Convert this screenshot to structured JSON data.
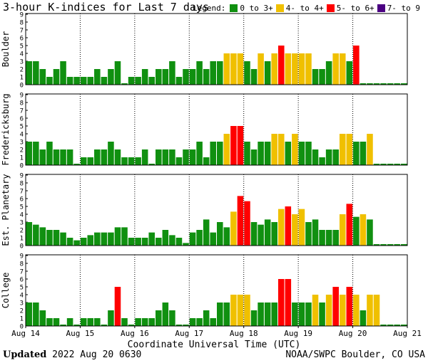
{
  "title": "3-hour K-indices for Last 7 days",
  "legend": {
    "label": "Legend:",
    "items": [
      {
        "label": "0 to 3+",
        "color": "#109010"
      },
      {
        "label": "4- to 4+",
        "color": "#f0c000"
      },
      {
        "label": "5- to 6+",
        "color": "#ff0000"
      },
      {
        "label": "7- to 9",
        "color": "#4b0082"
      }
    ]
  },
  "footer": {
    "updated_label": "Updated",
    "updated_value": "2022 Aug 20 0630",
    "source": "NOAA/SWPC Boulder, CO USA"
  },
  "chart_data": {
    "type": "bar",
    "xlabel": "Coordinate Universal Time (UTC)",
    "x_tick_labels": [
      "Aug 14",
      "Aug 15",
      "Aug 16",
      "Aug 17",
      "Aug 18",
      "Aug 19",
      "Aug 20",
      "Aug 21"
    ],
    "bins_per_day": 8,
    "ylim": [
      0,
      9
    ],
    "y_ticks": [
      "0",
      "1",
      "2",
      "3",
      "4",
      "5",
      "6",
      "7",
      "8",
      "9"
    ],
    "panels": [
      {
        "name": "Boulder",
        "values": [
          3,
          3,
          2,
          1,
          2,
          3,
          1,
          1,
          1,
          1,
          2,
          1,
          2,
          3,
          0,
          1,
          1,
          2,
          1,
          2,
          2,
          3,
          1,
          2,
          2,
          3,
          2,
          3,
          3,
          4,
          4,
          4,
          3,
          2,
          4,
          3,
          4,
          5,
          4,
          4,
          4,
          4,
          2,
          2,
          3,
          4,
          4,
          3,
          5,
          0,
          0,
          0,
          0,
          0,
          0,
          0
        ]
      },
      {
        "name": "Fredericksburg",
        "values": [
          3,
          3,
          2,
          3,
          2,
          2,
          2,
          0,
          1,
          1,
          2,
          2,
          3,
          2,
          1,
          1,
          1,
          2,
          0,
          2,
          2,
          2,
          1,
          2,
          2,
          3,
          1,
          3,
          3,
          4,
          5,
          5,
          3,
          2,
          3,
          3,
          4,
          4,
          3,
          4,
          3,
          3,
          2,
          1,
          2,
          2,
          4,
          4,
          3,
          3,
          4,
          0,
          0,
          0,
          0,
          0
        ]
      },
      {
        "name": "Est. Planetary",
        "values": [
          3,
          2.67,
          2.33,
          2,
          2,
          1.67,
          1,
          0.67,
          1,
          1.33,
          1.67,
          1.67,
          1.67,
          2.33,
          2.33,
          1,
          1,
          1,
          1.67,
          1,
          2,
          1.33,
          1,
          0.33,
          1.67,
          2,
          3.33,
          1.67,
          3,
          2.33,
          4.33,
          6.33,
          5.67,
          3,
          2.67,
          3.33,
          3,
          4.67,
          5,
          4,
          4.67,
          3,
          3.33,
          2,
          2,
          2,
          4,
          5.33,
          3.67,
          4,
          3.33,
          0,
          0,
          0,
          0,
          0
        ]
      },
      {
        "name": "College",
        "values": [
          3,
          3,
          2,
          1,
          1,
          0,
          1,
          0,
          1,
          1,
          1,
          0,
          2,
          5,
          1,
          0,
          1,
          1,
          1,
          2,
          3,
          2,
          0,
          0,
          1,
          1,
          2,
          1,
          3,
          3,
          4,
          4,
          4,
          2,
          3,
          3,
          3,
          6,
          6,
          3,
          3,
          3,
          4,
          3,
          4,
          5,
          4,
          5,
          4,
          2,
          4,
          4,
          0,
          0,
          0,
          0
        ]
      }
    ]
  }
}
